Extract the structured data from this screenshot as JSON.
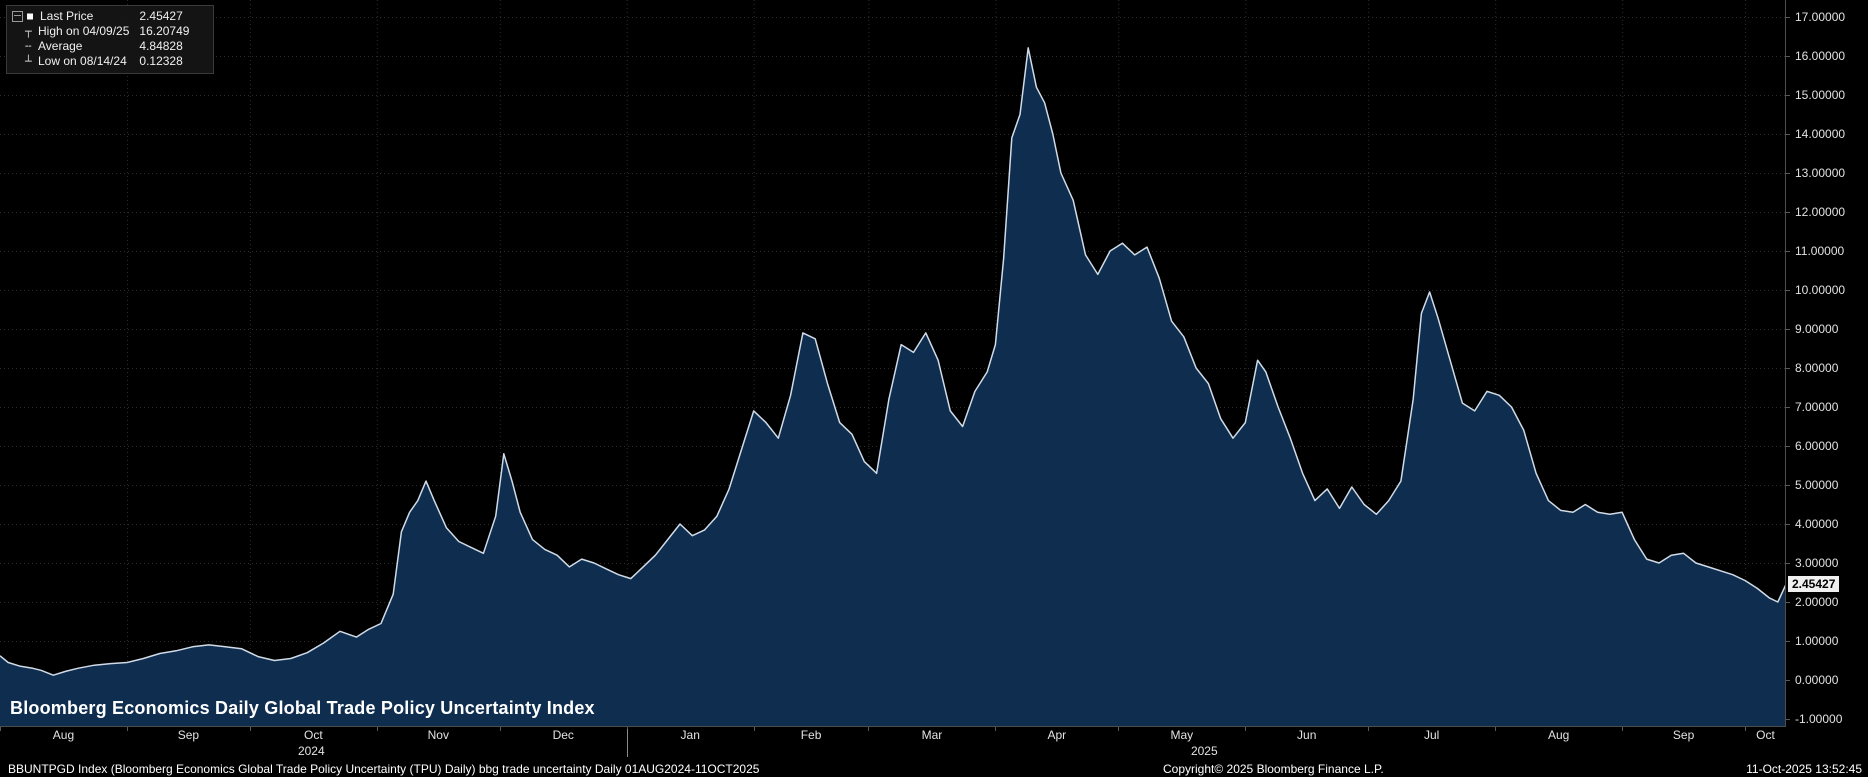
{
  "title": "Bloomberg Economics Daily Global Trade Policy Uncertainty Index",
  "last_price_tag": "2.45427",
  "legend": {
    "rows": [
      {
        "icon": "series-swatch-icon",
        "label": "Last Price",
        "value": "2.45427"
      },
      {
        "icon": "high-marker-icon",
        "label": "High on 04/09/25",
        "value": "16.20749"
      },
      {
        "icon": "average-marker-icon",
        "label": "Average",
        "value": "4.84828"
      },
      {
        "icon": "low-marker-icon",
        "label": "Low on 08/14/24",
        "value": "0.12328"
      }
    ]
  },
  "footer": {
    "left": "BBUNTPGD Index (Bloomberg Economics Global Trade Policy Uncertainty (TPU) Daily) bbg trade uncertainty Daily 01AUG2024-11OCT2025",
    "center": "Copyright© 2025 Bloomberg Finance L.P.",
    "right": "11-Oct-2025 13:52:45"
  },
  "chart_data": {
    "type": "area",
    "title": "Bloomberg Economics Daily Global Trade Policy Uncertainty Index",
    "xlabel": "",
    "ylabel": "",
    "x_start": "2024-08-01",
    "x_end": "2025-10-11",
    "ylim": [
      -1,
      17
    ],
    "grid": true,
    "legend_position": "top-left",
    "y_ticks": [
      [
        17,
        "17.00000"
      ],
      [
        16,
        "16.00000"
      ],
      [
        15,
        "15.00000"
      ],
      [
        14,
        "14.00000"
      ],
      [
        13,
        "13.00000"
      ],
      [
        12,
        "12.00000"
      ],
      [
        11,
        "11.00000"
      ],
      [
        10,
        "10.00000"
      ],
      [
        9,
        "9.00000"
      ],
      [
        8,
        "8.00000"
      ],
      [
        7,
        "7.00000"
      ],
      [
        6,
        "6.00000"
      ],
      [
        5,
        "5.00000"
      ],
      [
        4,
        "4.00000"
      ],
      [
        3,
        "3.00000"
      ],
      [
        2,
        "2.00000"
      ],
      [
        1,
        "1.00000"
      ],
      [
        0,
        "0.00000"
      ],
      [
        -1,
        "-1.00000"
      ]
    ],
    "months": [
      {
        "label": "Aug",
        "start": "2024-08-01"
      },
      {
        "label": "Sep",
        "start": "2024-09-01"
      },
      {
        "label": "Oct",
        "start": "2024-10-01"
      },
      {
        "label": "Nov",
        "start": "2024-11-01"
      },
      {
        "label": "Dec",
        "start": "2024-12-01"
      },
      {
        "label": "Jan",
        "start": "2025-01-01"
      },
      {
        "label": "Feb",
        "start": "2025-02-01"
      },
      {
        "label": "Mar",
        "start": "2025-03-01"
      },
      {
        "label": "Apr",
        "start": "2025-04-01"
      },
      {
        "label": "May",
        "start": "2025-05-01"
      },
      {
        "label": "Jun",
        "start": "2025-06-01"
      },
      {
        "label": "Jul",
        "start": "2025-07-01"
      },
      {
        "label": "Aug",
        "start": "2025-08-01"
      },
      {
        "label": "Sep",
        "start": "2025-09-01"
      },
      {
        "label": "Oct",
        "start": "2025-10-01"
      }
    ],
    "years": [
      {
        "label": "2024",
        "center": "2024-10-16"
      },
      {
        "label": "2025",
        "center": "2025-05-22"
      }
    ],
    "year_boundary": "2025-01-01",
    "stats": {
      "last": 2.45427,
      "high": 16.20749,
      "high_date": "04/09/25",
      "average": 4.84828,
      "low": 0.12328,
      "low_date": "08/14/24"
    },
    "series": [
      {
        "name": "BBUNTPGD Index",
        "color": "#d0dbe7",
        "fill": "#0e2d4f",
        "points": [
          [
            "2024-08-01",
            0.62
          ],
          [
            "2024-08-03",
            0.45
          ],
          [
            "2024-08-06",
            0.35
          ],
          [
            "2024-08-09",
            0.3
          ],
          [
            "2024-08-11",
            0.25
          ],
          [
            "2024-08-14",
            0.12328
          ],
          [
            "2024-08-17",
            0.22
          ],
          [
            "2024-08-20",
            0.3
          ],
          [
            "2024-08-24",
            0.38
          ],
          [
            "2024-08-28",
            0.42
          ],
          [
            "2024-09-01",
            0.45
          ],
          [
            "2024-09-05",
            0.55
          ],
          [
            "2024-09-09",
            0.68
          ],
          [
            "2024-09-13",
            0.75
          ],
          [
            "2024-09-17",
            0.85
          ],
          [
            "2024-09-21",
            0.9
          ],
          [
            "2024-09-25",
            0.85
          ],
          [
            "2024-09-29",
            0.8
          ],
          [
            "2024-10-03",
            0.6
          ],
          [
            "2024-10-07",
            0.5
          ],
          [
            "2024-10-11",
            0.55
          ],
          [
            "2024-10-15",
            0.7
          ],
          [
            "2024-10-19",
            0.95
          ],
          [
            "2024-10-23",
            1.25
          ],
          [
            "2024-10-27",
            1.1
          ],
          [
            "2024-10-30",
            1.3
          ],
          [
            "2024-11-02",
            1.45
          ],
          [
            "2024-11-05",
            2.2
          ],
          [
            "2024-11-07",
            3.8
          ],
          [
            "2024-11-09",
            4.3
          ],
          [
            "2024-11-11",
            4.6
          ],
          [
            "2024-11-13",
            5.1
          ],
          [
            "2024-11-15",
            4.6
          ],
          [
            "2024-11-18",
            3.9
          ],
          [
            "2024-11-21",
            3.55
          ],
          [
            "2024-11-24",
            3.4
          ],
          [
            "2024-11-27",
            3.25
          ],
          [
            "2024-11-30",
            4.2
          ],
          [
            "2024-12-02",
            5.8
          ],
          [
            "2024-12-04",
            5.1
          ],
          [
            "2024-12-06",
            4.3
          ],
          [
            "2024-12-09",
            3.6
          ],
          [
            "2024-12-12",
            3.35
          ],
          [
            "2024-12-15",
            3.2
          ],
          [
            "2024-12-18",
            2.9
          ],
          [
            "2024-12-21",
            3.1
          ],
          [
            "2024-12-24",
            3.0
          ],
          [
            "2024-12-27",
            2.85
          ],
          [
            "2024-12-30",
            2.7
          ],
          [
            "2025-01-02",
            2.6
          ],
          [
            "2025-01-05",
            2.9
          ],
          [
            "2025-01-08",
            3.2
          ],
          [
            "2025-01-11",
            3.6
          ],
          [
            "2025-01-14",
            4.0
          ],
          [
            "2025-01-17",
            3.7
          ],
          [
            "2025-01-20",
            3.85
          ],
          [
            "2025-01-23",
            4.2
          ],
          [
            "2025-01-26",
            4.9
          ],
          [
            "2025-01-29",
            5.9
          ],
          [
            "2025-02-01",
            6.9
          ],
          [
            "2025-02-04",
            6.6
          ],
          [
            "2025-02-07",
            6.2
          ],
          [
            "2025-02-10",
            7.3
          ],
          [
            "2025-02-13",
            8.9
          ],
          [
            "2025-02-16",
            8.75
          ],
          [
            "2025-02-19",
            7.6
          ],
          [
            "2025-02-22",
            6.6
          ],
          [
            "2025-02-25",
            6.3
          ],
          [
            "2025-02-28",
            5.6
          ],
          [
            "2025-03-03",
            5.3
          ],
          [
            "2025-03-06",
            7.2
          ],
          [
            "2025-03-09",
            8.6
          ],
          [
            "2025-03-12",
            8.4
          ],
          [
            "2025-03-15",
            8.9
          ],
          [
            "2025-03-18",
            8.2
          ],
          [
            "2025-03-21",
            6.9
          ],
          [
            "2025-03-24",
            6.5
          ],
          [
            "2025-03-27",
            7.4
          ],
          [
            "2025-03-30",
            7.9
          ],
          [
            "2025-04-01",
            8.6
          ],
          [
            "2025-04-03",
            10.8
          ],
          [
            "2025-04-05",
            13.9
          ],
          [
            "2025-04-07",
            14.5
          ],
          [
            "2025-04-09",
            16.20749
          ],
          [
            "2025-04-11",
            15.2
          ],
          [
            "2025-04-13",
            14.8
          ],
          [
            "2025-04-15",
            14.0
          ],
          [
            "2025-04-17",
            13.0
          ],
          [
            "2025-04-20",
            12.3
          ],
          [
            "2025-04-23",
            10.9
          ],
          [
            "2025-04-26",
            10.4
          ],
          [
            "2025-04-29",
            11.0
          ],
          [
            "2025-05-02",
            11.2
          ],
          [
            "2025-05-05",
            10.9
          ],
          [
            "2025-05-08",
            11.1
          ],
          [
            "2025-05-11",
            10.3
          ],
          [
            "2025-05-14",
            9.2
          ],
          [
            "2025-05-17",
            8.8
          ],
          [
            "2025-05-20",
            8.0
          ],
          [
            "2025-05-23",
            7.6
          ],
          [
            "2025-05-26",
            6.7
          ],
          [
            "2025-05-29",
            6.2
          ],
          [
            "2025-06-01",
            6.6
          ],
          [
            "2025-06-04",
            8.2
          ],
          [
            "2025-06-06",
            7.9
          ],
          [
            "2025-06-09",
            7.0
          ],
          [
            "2025-06-12",
            6.2
          ],
          [
            "2025-06-15",
            5.3
          ],
          [
            "2025-06-18",
            4.6
          ],
          [
            "2025-06-21",
            4.9
          ],
          [
            "2025-06-24",
            4.4
          ],
          [
            "2025-06-27",
            4.95
          ],
          [
            "2025-06-30",
            4.5
          ],
          [
            "2025-07-03",
            4.25
          ],
          [
            "2025-07-06",
            4.6
          ],
          [
            "2025-07-09",
            5.1
          ],
          [
            "2025-07-12",
            7.2
          ],
          [
            "2025-07-14",
            9.4
          ],
          [
            "2025-07-16",
            9.95
          ],
          [
            "2025-07-18",
            9.3
          ],
          [
            "2025-07-21",
            8.2
          ],
          [
            "2025-07-24",
            7.1
          ],
          [
            "2025-07-27",
            6.9
          ],
          [
            "2025-07-30",
            7.4
          ],
          [
            "2025-08-02",
            7.3
          ],
          [
            "2025-08-05",
            7.0
          ],
          [
            "2025-08-08",
            6.4
          ],
          [
            "2025-08-11",
            5.3
          ],
          [
            "2025-08-14",
            4.6
          ],
          [
            "2025-08-17",
            4.35
          ],
          [
            "2025-08-20",
            4.3
          ],
          [
            "2025-08-23",
            4.5
          ],
          [
            "2025-08-26",
            4.3
          ],
          [
            "2025-08-29",
            4.25
          ],
          [
            "2025-09-01",
            4.3
          ],
          [
            "2025-09-04",
            3.6
          ],
          [
            "2025-09-07",
            3.1
          ],
          [
            "2025-09-10",
            3.0
          ],
          [
            "2025-09-13",
            3.2
          ],
          [
            "2025-09-16",
            3.25
          ],
          [
            "2025-09-19",
            3.0
          ],
          [
            "2025-09-22",
            2.9
          ],
          [
            "2025-09-25",
            2.8
          ],
          [
            "2025-09-28",
            2.7
          ],
          [
            "2025-10-01",
            2.55
          ],
          [
            "2025-10-04",
            2.35
          ],
          [
            "2025-10-07",
            2.1
          ],
          [
            "2025-10-09",
            2.0
          ],
          [
            "2025-10-11",
            2.45427
          ]
        ]
      }
    ]
  }
}
